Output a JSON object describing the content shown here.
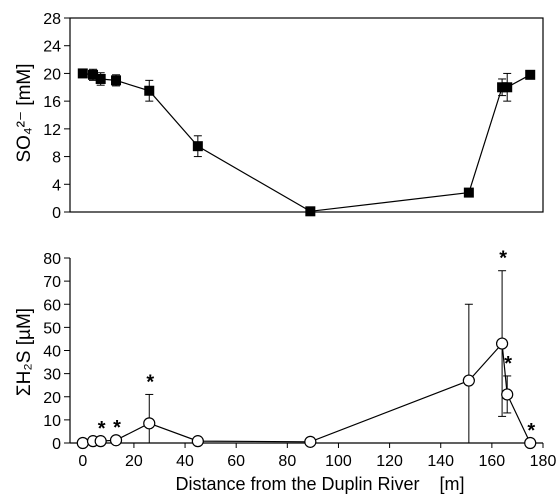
{
  "chart_data": [
    {
      "type": "line",
      "marker": "filled-square",
      "ylabel": "SO₄²⁻ [mM]",
      "ylim": [
        0,
        28
      ],
      "yticks": [
        0,
        4,
        8,
        12,
        16,
        20,
        24,
        28
      ],
      "xlim": [
        -5,
        180
      ],
      "show_x_tick_labels": false,
      "grid": false,
      "points": [
        {
          "x": 0,
          "y": 20.0,
          "err": 0.5
        },
        {
          "x": 4,
          "y": 19.8,
          "err": 0.8
        },
        {
          "x": 7,
          "y": 19.2,
          "err": 0.9
        },
        {
          "x": 13,
          "y": 19.0,
          "err": 0.8
        },
        {
          "x": 26,
          "y": 17.5,
          "err": 1.5
        },
        {
          "x": 45,
          "y": 9.5,
          "err": 1.5
        },
        {
          "x": 89,
          "y": 0.1,
          "err": 0
        },
        {
          "x": 151,
          "y": 2.8,
          "err": 0
        },
        {
          "x": 164,
          "y": 18.0,
          "err": 1.2
        },
        {
          "x": 166,
          "y": 18.0,
          "err": 2.0
        },
        {
          "x": 175,
          "y": 19.8,
          "err": 0
        }
      ]
    },
    {
      "type": "line",
      "marker": "open-circle",
      "ylabel": "ΣH₂S [µM]",
      "xlabel": "Distance from the Duplin River    [m]",
      "ylim": [
        0,
        80
      ],
      "yticks": [
        0,
        10,
        20,
        30,
        40,
        50,
        60,
        70,
        80
      ],
      "xlim": [
        -5,
        180
      ],
      "xticks": [
        0,
        20,
        40,
        60,
        80,
        100,
        120,
        140,
        160,
        180
      ],
      "grid": false,
      "points": [
        {
          "x": 0,
          "y": 0,
          "err": 0,
          "star": false
        },
        {
          "x": 4,
          "y": 0.8,
          "err": 0,
          "star": false
        },
        {
          "x": 7,
          "y": 0.8,
          "err": 0,
          "star": true
        },
        {
          "x": 13,
          "y": 1.2,
          "err": 0,
          "star": true
        },
        {
          "x": 26,
          "y": 8.5,
          "err": 12.5,
          "star": true
        },
        {
          "x": 45,
          "y": 0.8,
          "err": 0,
          "star": false
        },
        {
          "x": 89,
          "y": 0.5,
          "err": 0,
          "star": false
        },
        {
          "x": 151,
          "y": 27,
          "err": 33,
          "star": false
        },
        {
          "x": 164,
          "y": 43,
          "err": 31.5,
          "star": true
        },
        {
          "x": 166,
          "y": 21,
          "err": 8,
          "star": true
        },
        {
          "x": 175,
          "y": 0,
          "err": 0,
          "star": true
        }
      ]
    }
  ],
  "annotation_symbol": "*"
}
